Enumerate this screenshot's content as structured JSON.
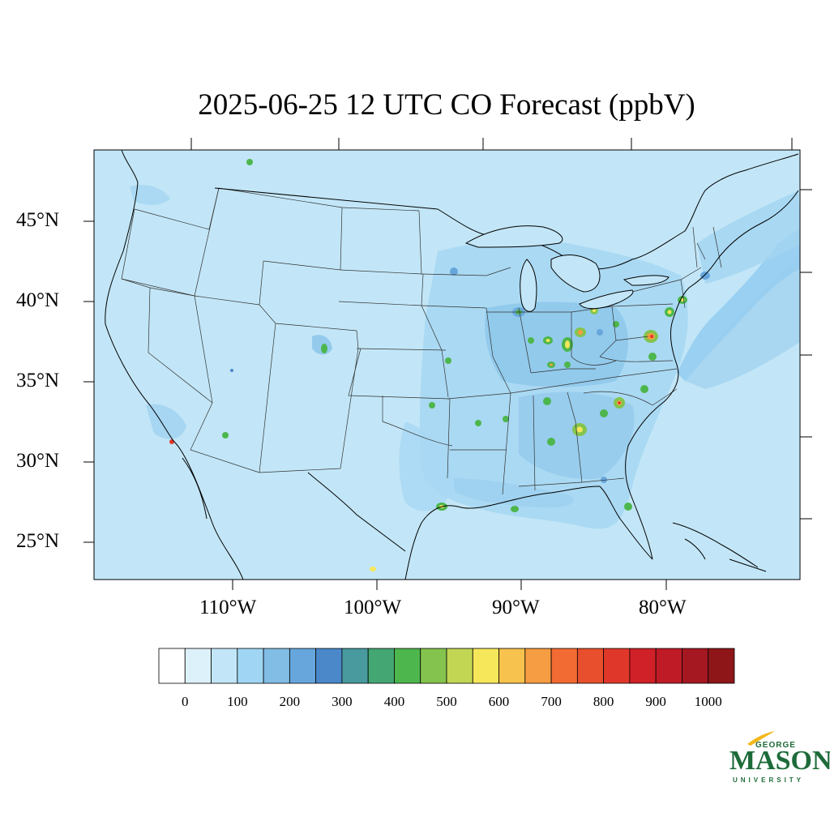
{
  "title": "2025-06-25 12 UTC CO Forecast (ppbV)",
  "map": {
    "background_color": "#c2e6f7",
    "ocean_color": "#b9e1f5",
    "latitude_labels": [
      "45°N",
      "40°N",
      "35°N",
      "30°N",
      "25°N"
    ],
    "longitude_labels": [
      "110°W",
      "100°W",
      "90°W",
      "80°W"
    ]
  },
  "colorbar": {
    "colors": [
      "#ffffff",
      "#ddf1fb",
      "#c2e6f7",
      "#a0d6f3",
      "#82bde6",
      "#66a6dc",
      "#4a88c9",
      "#489a9e",
      "#44a673",
      "#4db64d",
      "#84c44e",
      "#c2d654",
      "#f6e65a",
      "#f7c24d",
      "#f69c42",
      "#f26b33",
      "#e84f2d",
      "#e0372b",
      "#d02028",
      "#bf1b27",
      "#a51821",
      "#8e1619"
    ],
    "tick_labels": [
      "0",
      "100",
      "200",
      "300",
      "400",
      "500",
      "600",
      "700",
      "800",
      "900",
      "1000"
    ]
  },
  "logo": {
    "line1": "GEORGE",
    "line2": "MASON",
    "line3": "UNIVERSITY"
  }
}
